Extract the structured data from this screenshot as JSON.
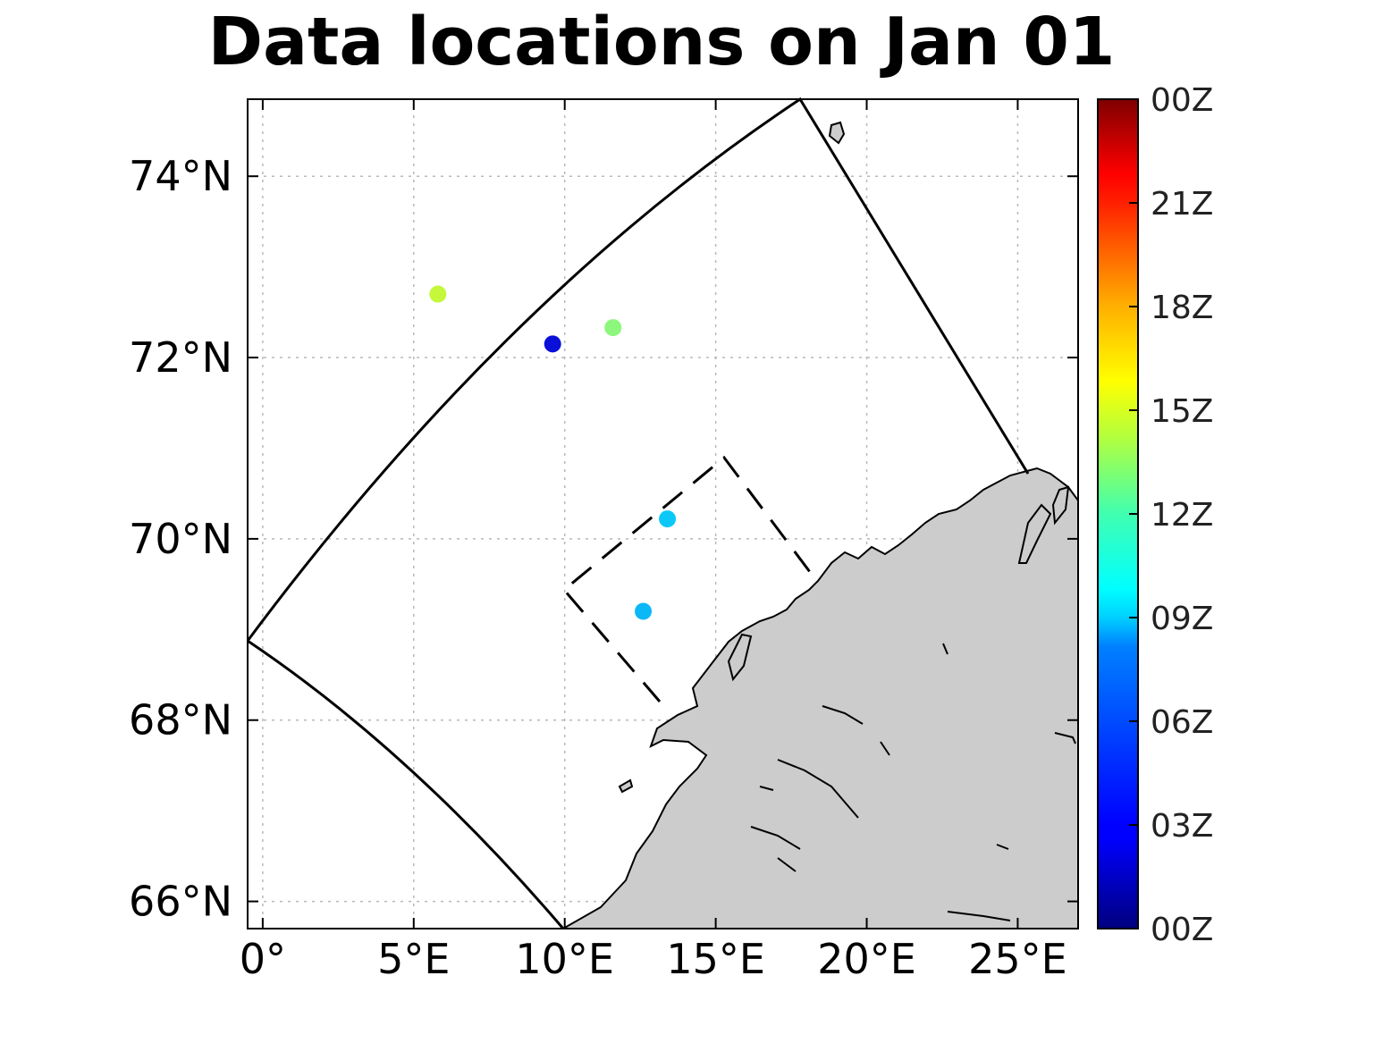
{
  "title": "Data locations on Jan 01",
  "chart_data": {
    "type": "scatter",
    "title": "Data locations on Jan 01",
    "xlim": [
      -0.5,
      27
    ],
    "ylim": [
      65.7,
      74.85
    ],
    "x_ticks": [
      {
        "value": 0,
        "label": "0°"
      },
      {
        "value": 5,
        "label": "5°E"
      },
      {
        "value": 10,
        "label": "10°E"
      },
      {
        "value": 15,
        "label": "15°E"
      },
      {
        "value": 20,
        "label": "20°E"
      },
      {
        "value": 25,
        "label": "25°E"
      }
    ],
    "y_ticks": [
      {
        "value": 66,
        "label": "66°N"
      },
      {
        "value": 68,
        "label": "68°N"
      },
      {
        "value": 70,
        "label": "70°N"
      },
      {
        "value": 72,
        "label": "72°N"
      },
      {
        "value": 74,
        "label": "74°N"
      }
    ],
    "grid": true,
    "points": [
      {
        "lon": 5.8,
        "lat": 72.7,
        "hour": 14.0,
        "color": "#c5f73a"
      },
      {
        "lon": 9.6,
        "lat": 72.15,
        "hour": 2.0,
        "color": "#0a10d8"
      },
      {
        "lon": 11.6,
        "lat": 72.33,
        "hour": 12.5,
        "color": "#8cf77c"
      },
      {
        "lon": 13.4,
        "lat": 70.22,
        "hour": 8.2,
        "color": "#0cc8f7"
      },
      {
        "lon": 12.6,
        "lat": 69.2,
        "hour": 7.5,
        "color": "#0bb8f7"
      }
    ],
    "colorbar": {
      "labels": [
        "00Z",
        "03Z",
        "06Z",
        "09Z",
        "12Z",
        "15Z",
        "18Z",
        "21Z",
        "00Z"
      ],
      "colormap": "jet"
    }
  }
}
